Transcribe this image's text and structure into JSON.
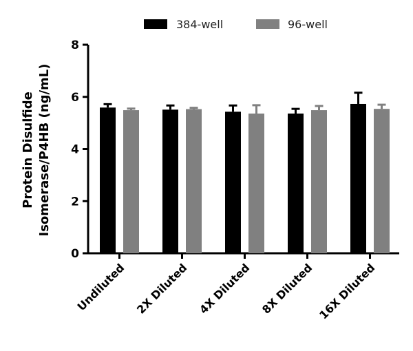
{
  "chart_data": {
    "type": "bar",
    "title": "",
    "xlabel": "",
    "ylabel": [
      "Protein  Disulfide",
      "Isomerase/P4HB (ng/mL)"
    ],
    "ylim": [
      0,
      8
    ],
    "yticks": [
      0,
      2,
      4,
      6,
      8
    ],
    "grid": false,
    "legend_position": "top",
    "categories": [
      "Undiluted",
      "2X Diluted",
      "4X Diluted",
      "8X Diluted",
      "16X Diluted"
    ],
    "series": [
      {
        "name": "384-well",
        "color": "#000000",
        "values": [
          5.59,
          5.51,
          5.43,
          5.36,
          5.73
        ],
        "errors": [
          0.13,
          0.16,
          0.24,
          0.18,
          0.43
        ]
      },
      {
        "name": "96-well",
        "color": "#808080",
        "values": [
          5.49,
          5.53,
          5.36,
          5.49,
          5.54
        ],
        "errors": [
          0.06,
          0.05,
          0.32,
          0.16,
          0.16
        ]
      }
    ]
  }
}
